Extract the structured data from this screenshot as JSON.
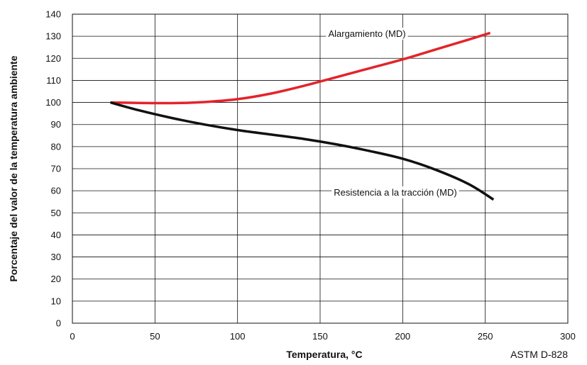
{
  "chart_data": {
    "type": "line",
    "xlabel": "Temperatura, °C",
    "ylabel": "Porcentaje del valor de la temperatura ambiente",
    "xlim": [
      0,
      300
    ],
    "ylim": [
      0,
      140
    ],
    "x_ticks": [
      0,
      50,
      100,
      150,
      200,
      250,
      300
    ],
    "y_ticks": [
      0,
      10,
      20,
      30,
      40,
      50,
      60,
      70,
      80,
      90,
      100,
      110,
      120,
      130,
      140
    ],
    "grid": true,
    "source_note": "ASTM D-828",
    "series": [
      {
        "name": "Alargamiento (MD)",
        "color": "#e3242b",
        "x": [
          23,
          40,
          60,
          80,
          100,
          120,
          140,
          160,
          180,
          200,
          220,
          240,
          253
        ],
        "y": [
          100,
          99.8,
          99.7,
          100.2,
          101.5,
          104,
          107.5,
          111.5,
          115.5,
          119.5,
          124,
          128.5,
          131.5
        ]
      },
      {
        "name": "Resistencia a la tracción (MD)",
        "color": "#111111",
        "x": [
          23,
          40,
          60,
          80,
          100,
          120,
          140,
          160,
          180,
          200,
          220,
          240,
          255
        ],
        "y": [
          100,
          96.5,
          93,
          90,
          87.5,
          85.5,
          83.5,
          81,
          78,
          74.5,
          69.5,
          63,
          56
        ]
      }
    ]
  }
}
